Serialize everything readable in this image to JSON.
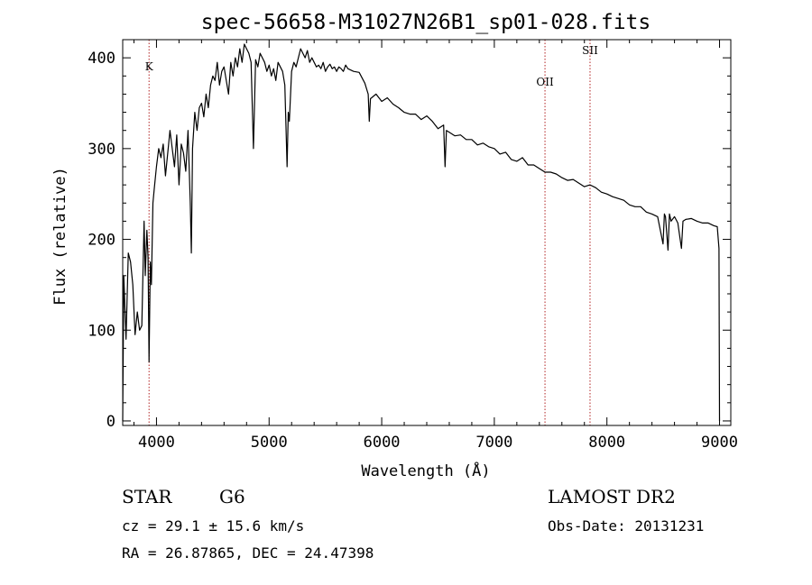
{
  "chart_data": {
    "type": "line",
    "title": "spec-56658-M31027N26B1_sp01-028.fits",
    "xlabel": "Wavelength (Å)",
    "ylabel": "Flux (relative)",
    "xlim": [
      3700,
      9100
    ],
    "ylim": [
      -5,
      420
    ],
    "xticks": [
      4000,
      5000,
      6000,
      7000,
      8000,
      9000
    ],
    "yticks": [
      0,
      100,
      200,
      300,
      400
    ],
    "grid": false,
    "spectral_lines": [
      {
        "label": "K",
        "wavelength": 3934
      },
      {
        "label": "OII",
        "wavelength": 7450
      },
      {
        "label": "SII",
        "wavelength": 7850
      }
    ],
    "series": [
      {
        "x": [
          3700,
          3710,
          3730,
          3750,
          3770,
          3790,
          3810,
          3830,
          3850,
          3870,
          3890,
          3900,
          3915,
          3925,
          3934,
          3945,
          3955,
          3968,
          3980,
          4000,
          4020,
          4040,
          4060,
          4080,
          4100,
          4120,
          4140,
          4160,
          4180,
          4200,
          4220,
          4240,
          4260,
          4280,
          4300,
          4310,
          4320,
          4340,
          4360,
          4380,
          4400,
          4420,
          4440,
          4460,
          4480,
          4500,
          4520,
          4540,
          4560,
          4580,
          4600,
          4620,
          4640,
          4660,
          4680,
          4700,
          4720,
          4740,
          4760,
          4780,
          4800,
          4820,
          4840,
          4861,
          4880,
          4900,
          4920,
          4940,
          4960,
          4980,
          5000,
          5020,
          5040,
          5060,
          5080,
          5100,
          5120,
          5140,
          5160,
          5170,
          5180,
          5200,
          5220,
          5240,
          5260,
          5280,
          5300,
          5320,
          5340,
          5360,
          5380,
          5400,
          5420,
          5440,
          5460,
          5480,
          5500,
          5520,
          5540,
          5560,
          5580,
          5600,
          5620,
          5640,
          5660,
          5680,
          5700,
          5750,
          5800,
          5850,
          5880,
          5890,
          5900,
          5950,
          6000,
          6050,
          6100,
          6150,
          6200,
          6250,
          6300,
          6350,
          6400,
          6450,
          6500,
          6550,
          6563,
          6575,
          6600,
          6650,
          6700,
          6750,
          6800,
          6850,
          6900,
          6950,
          7000,
          7050,
          7100,
          7150,
          7200,
          7250,
          7300,
          7350,
          7400,
          7450,
          7500,
          7550,
          7600,
          7650,
          7700,
          7750,
          7800,
          7850,
          7900,
          7950,
          8000,
          8050,
          8100,
          8150,
          8200,
          8250,
          8300,
          8350,
          8400,
          8450,
          8498,
          8510,
          8520,
          8542,
          8555,
          8570,
          8600,
          8630,
          8662,
          8675,
          8700,
          8750,
          8800,
          8850,
          8900,
          8950,
          8980,
          8995,
          9000
        ],
        "y": [
          0,
          160,
          90,
          185,
          175,
          150,
          95,
          120,
          100,
          105,
          220,
          160,
          210,
          180,
          65,
          175,
          150,
          240,
          255,
          280,
          300,
          290,
          305,
          270,
          295,
          320,
          300,
          280,
          315,
          260,
          305,
          295,
          275,
          320,
          240,
          185,
          300,
          340,
          320,
          345,
          350,
          335,
          360,
          345,
          370,
          380,
          375,
          395,
          370,
          385,
          390,
          375,
          360,
          395,
          380,
          400,
          390,
          410,
          395,
          415,
          410,
          405,
          395,
          300,
          398,
          390,
          405,
          400,
          395,
          385,
          392,
          380,
          388,
          375,
          395,
          390,
          385,
          370,
          280,
          340,
          330,
          385,
          395,
          390,
          400,
          410,
          405,
          400,
          408,
          395,
          400,
          395,
          390,
          392,
          388,
          395,
          385,
          390,
          393,
          388,
          390,
          385,
          390,
          388,
          385,
          392,
          388,
          385,
          384,
          372,
          360,
          330,
          355,
          360,
          352,
          356,
          349,
          345,
          340,
          338,
          338,
          332,
          336,
          330,
          322,
          326,
          280,
          320,
          318,
          314,
          315,
          310,
          310,
          304,
          306,
          302,
          300,
          294,
          296,
          288,
          286,
          290,
          282,
          282,
          278,
          274,
          274,
          272,
          268,
          265,
          266,
          262,
          258,
          260,
          257,
          252,
          250,
          247,
          245,
          243,
          238,
          236,
          236,
          230,
          228,
          225,
          195,
          228,
          225,
          188,
          228,
          220,
          225,
          218,
          190,
          220,
          222,
          223,
          220,
          218,
          218,
          215,
          214,
          190,
          0
        ]
      }
    ]
  },
  "info": {
    "object_class": "STAR",
    "subclass": "G6",
    "survey": "LAMOST DR2",
    "redshift": "cz = 29.1 ± 15.6 km/s",
    "obs_date": "Obs-Date: 20131231",
    "coords": "RA =  26.87865, DEC =  24.47398"
  }
}
